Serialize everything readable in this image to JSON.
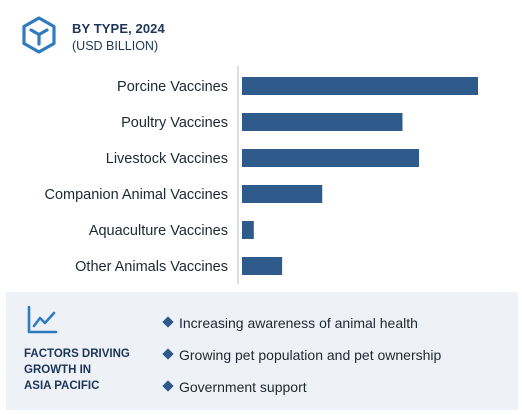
{
  "header": {
    "title": "BY TYPE, 2024",
    "subtitle": "(USD BILLION)"
  },
  "chart_data": {
    "type": "bar",
    "orientation": "horizontal",
    "categories": [
      "Porcine Vaccines",
      "Poultry Vaccines",
      "Livestock Vaccines",
      "Companion Animal Vaccines",
      "Aquaculture Vaccines",
      "Other Animals Vaccines"
    ],
    "values": [
      1.0,
      0.68,
      0.75,
      0.34,
      0.05,
      0.17
    ],
    "xlim": [
      0,
      1.0
    ],
    "grid": false,
    "legend": "none",
    "bar_color": "#2e5a8c"
  },
  "factors": {
    "title_lines": [
      "FACTORS DRIVING",
      "GROWTH IN",
      "ASIA PACIFIC"
    ],
    "items": [
      "Increasing awareness of animal health",
      "Growing pet population and pet ownership",
      "Government support"
    ]
  },
  "colors": {
    "accent": "#2e5a8c",
    "icon": "#2e7bbf",
    "panel_bg": "#eef2f7"
  },
  "icons": {
    "header": "cube-icon",
    "panel": "trend-chart-icon",
    "bullet": "diamond-icon"
  }
}
